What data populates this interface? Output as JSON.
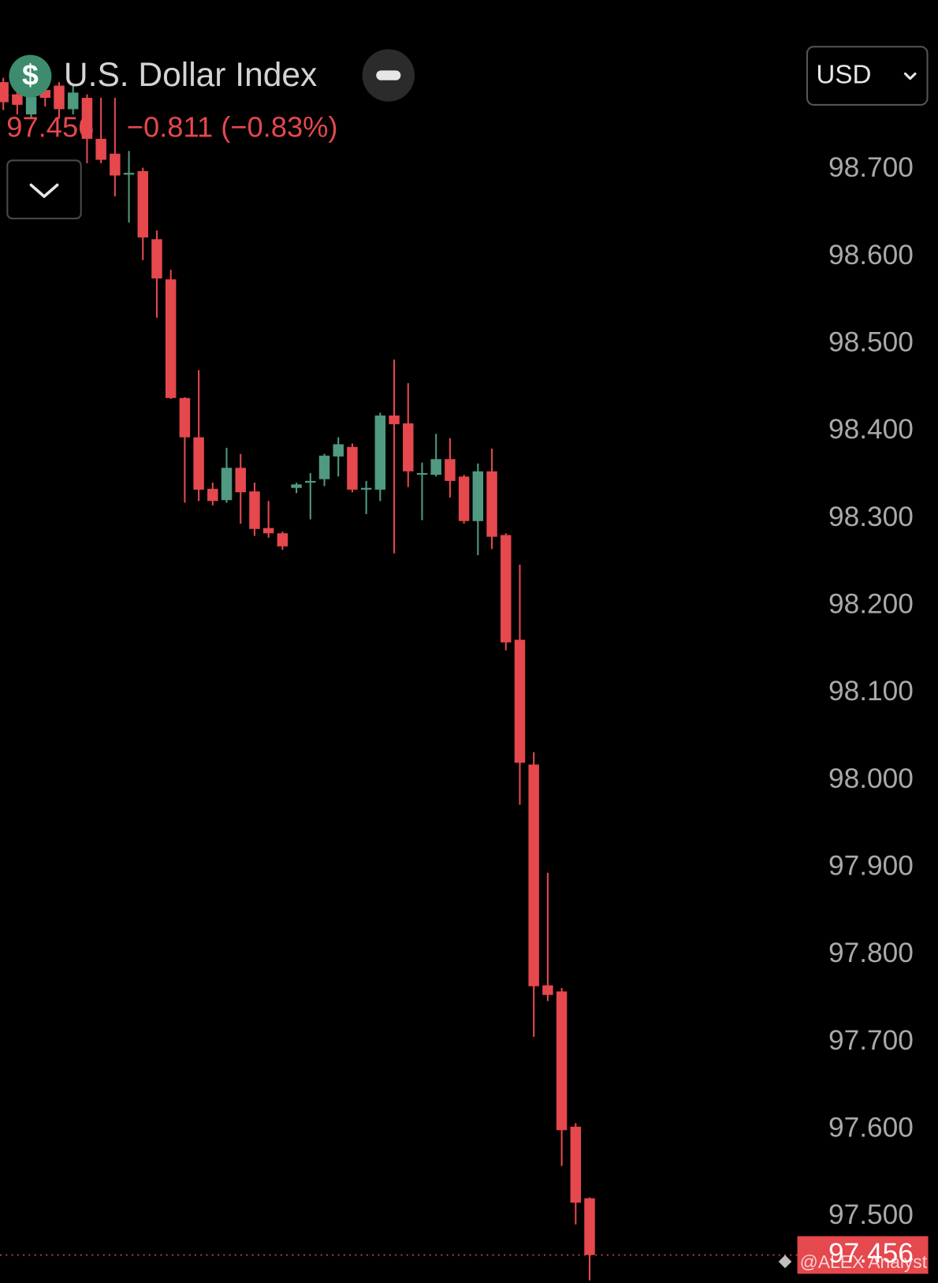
{
  "chart_data": {
    "type": "candlestick",
    "title": "U.S. Dollar Index",
    "icon_label": "$",
    "last_price": 97.456,
    "change_label": "−0.811 (−0.83%)",
    "currency": "USD",
    "watermark": "@ALEX Analyst",
    "up_color": "#4f9a80",
    "down_color": "#e5484d",
    "open": [
      98.8,
      98.786,
      98.763,
      98.791,
      98.796,
      98.769,
      98.782,
      98.735,
      98.718,
      98.694,
      98.698,
      98.62,
      98.574,
      98.438,
      98.393,
      98.334,
      98.321,
      98.358,
      98.331,
      98.289,
      98.283,
      98.335,
      98.341,
      98.345,
      98.371,
      98.382,
      98.333,
      98.333,
      98.418,
      98.409,
      98.351,
      98.35,
      98.368,
      98.348,
      98.297,
      98.354,
      98.281,
      98.161,
      98.018,
      97.765,
      97.758,
      97.603,
      97.521
    ],
    "high": [
      98.805,
      98.791,
      98.791,
      98.8,
      98.8,
      98.796,
      98.786,
      98.782,
      98.782,
      98.721,
      98.702,
      98.63,
      98.585,
      98.439,
      98.47,
      98.341,
      98.381,
      98.374,
      98.341,
      98.32,
      98.285,
      98.341,
      98.352,
      98.374,
      98.393,
      98.386,
      98.343,
      98.421,
      98.482,
      98.455,
      98.364,
      98.397,
      98.392,
      98.35,
      98.363,
      98.38,
      98.283,
      98.247,
      98.032,
      97.894,
      97.762,
      97.607,
      97.522
    ],
    "low": [
      98.768,
      98.763,
      98.758,
      98.772,
      98.758,
      98.763,
      98.707,
      98.707,
      98.669,
      98.639,
      98.596,
      98.53,
      98.437,
      98.318,
      98.32,
      98.315,
      98.318,
      98.294,
      98.28,
      98.278,
      98.264,
      98.329,
      98.299,
      98.337,
      98.348,
      98.33,
      98.305,
      98.32,
      98.26,
      98.336,
      98.298,
      98.348,
      98.324,
      98.294,
      98.258,
      98.265,
      98.149,
      97.972,
      97.706,
      97.747,
      97.558,
      97.491,
      97.427
    ],
    "close": [
      98.777,
      98.774,
      98.783,
      98.782,
      98.769,
      98.788,
      98.735,
      98.711,
      98.693,
      98.696,
      98.622,
      98.575,
      98.438,
      98.393,
      98.333,
      98.32,
      98.358,
      98.33,
      98.288,
      98.283,
      98.268,
      98.339,
      98.343,
      98.372,
      98.385,
      98.333,
      98.335,
      98.418,
      98.408,
      98.354,
      98.352,
      98.368,
      98.343,
      98.297,
      98.354,
      98.279,
      98.158,
      98.02,
      97.764,
      97.754,
      97.599,
      97.516,
      97.456
    ],
    "ylim": [
      97.424,
      98.894
    ],
    "yticks": [
      {
        "value": 97.5,
        "label": "97.500"
      },
      {
        "value": 97.6,
        "label": "97.600"
      },
      {
        "value": 97.7,
        "label": "97.700"
      },
      {
        "value": 97.8,
        "label": "97.800"
      },
      {
        "value": 97.9,
        "label": "97.900"
      },
      {
        "value": 98.0,
        "label": "98.000"
      },
      {
        "value": 98.1,
        "label": "98.100"
      },
      {
        "value": 98.2,
        "label": "98.200"
      },
      {
        "value": 98.3,
        "label": "98.300"
      },
      {
        "value": 98.4,
        "label": "98.400"
      },
      {
        "value": 98.5,
        "label": "98.500"
      },
      {
        "value": 98.6,
        "label": "98.600"
      },
      {
        "value": 98.7,
        "label": "98.700"
      }
    ]
  }
}
